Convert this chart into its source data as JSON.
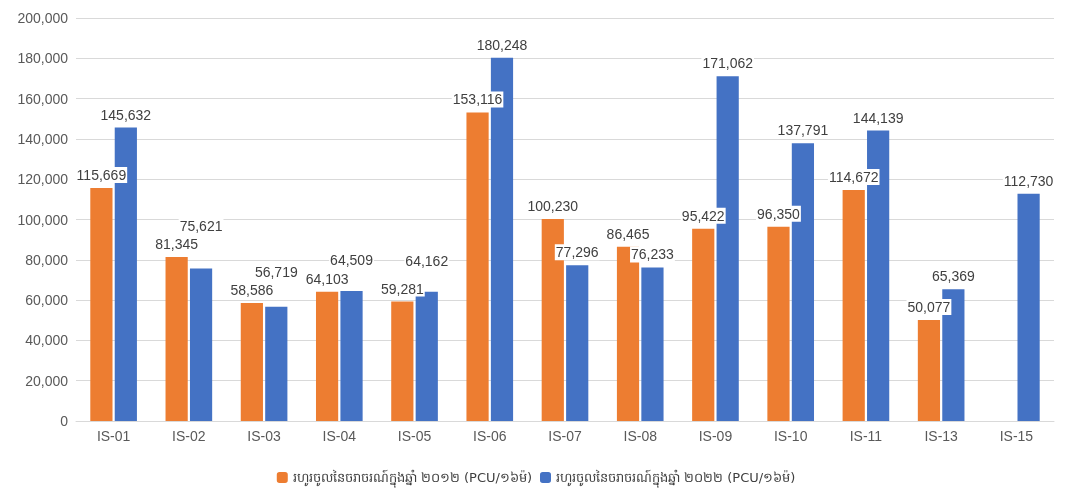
{
  "chart_data": {
    "type": "bar",
    "categories": [
      "IS-01",
      "IS-02",
      "IS-03",
      "IS-04",
      "IS-05",
      "IS-06",
      "IS-07",
      "IS-08",
      "IS-09",
      "IS-10",
      "IS-11",
      "IS-13",
      "IS-15"
    ],
    "series": [
      {
        "name": "រហូរចូលនៃចរាចរណ៍ក្នុងឆ្នាំ ២០១២ (PCU/១៦ម៉)",
        "color": "#ed7d31",
        "values": [
          115669,
          81345,
          58586,
          64103,
          59281,
          153116,
          100230,
          86465,
          95422,
          96350,
          114672,
          50077,
          null
        ],
        "value_labels": [
          "115,669",
          "81,345",
          "58,586",
          "64,103",
          "59,281",
          "153,116",
          "100,230",
          "86,465",
          "95,422",
          "96,350",
          "114,672",
          "50,077",
          null
        ]
      },
      {
        "name": "រហូរចូលនៃចរាចរណ៍ក្នុងឆ្នាំ ២០២២ (PCU/១៦ម៉)",
        "color": "#4472c4",
        "values": [
          145632,
          75621,
          56719,
          64509,
          64162,
          180248,
          77296,
          76233,
          171062,
          137791,
          144139,
          65369,
          112730
        ],
        "value_labels": [
          "145,632",
          "75,621",
          "56,719",
          "64,509",
          "64,162",
          "180,248",
          "77,296",
          "76,233",
          "171,062",
          "137,791",
          "144,139",
          "65,369",
          "112,730"
        ]
      }
    ],
    "ylim": [
      0,
      200000
    ],
    "yticks": [
      0,
      {
        "value": 20000,
        "label": "20,000"
      },
      {
        "value": 40000,
        "label": "40,000"
      },
      {
        "value": 60000,
        "label": "60,000"
      },
      {
        "value": 80000,
        "label": "80,000"
      },
      {
        "value": 100000,
        "label": "100,000"
      },
      {
        "value": 120000,
        "label": "120,000"
      },
      {
        "value": 140000,
        "label": "140,000"
      },
      {
        "value": 160000,
        "label": "160,000"
      },
      {
        "value": 180000,
        "label": "180,000"
      },
      {
        "value": 200000,
        "label": "200,000"
      }
    ],
    "grid": "y",
    "legend": "bottom"
  }
}
